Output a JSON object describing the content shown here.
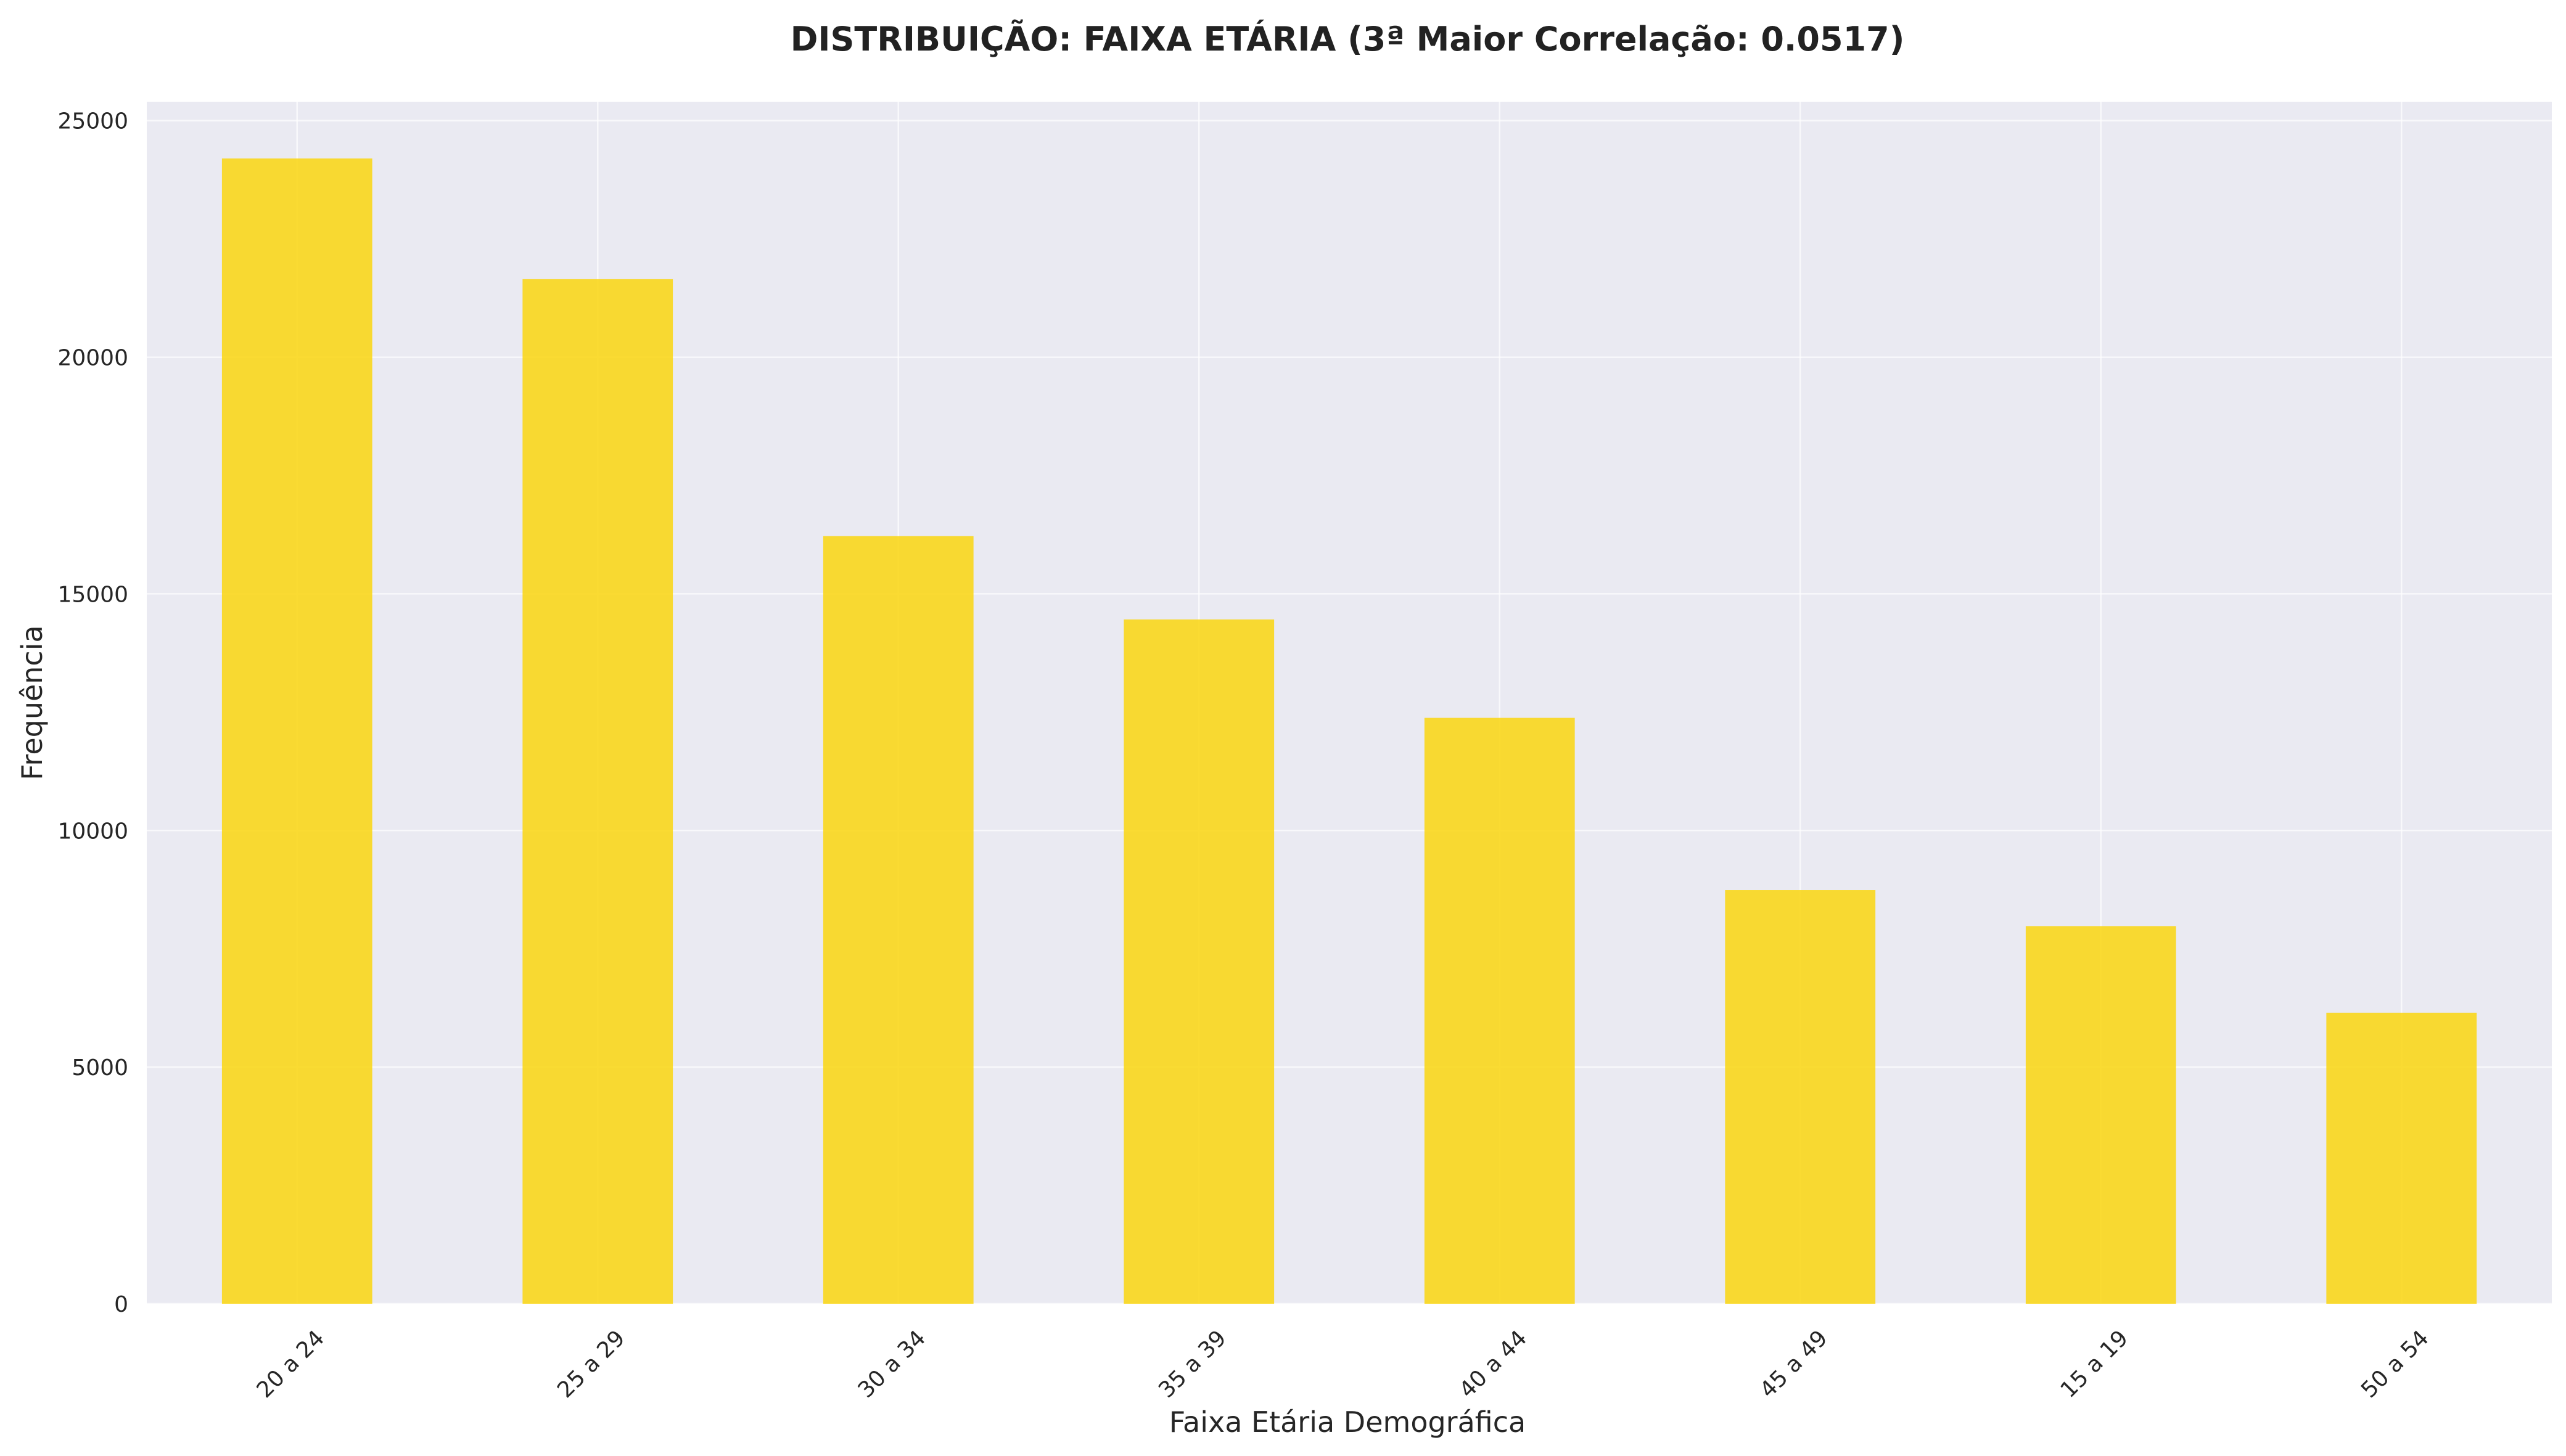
{
  "chart_data": {
    "type": "bar",
    "title": "DISTRIBUIÇÃO: FAIXA ETÁRIA (3ª Maior Correlação: 0.0517)",
    "xlabel": "Faixa Etária Demográfica",
    "ylabel": "Frequência",
    "categories": [
      "20 a 24",
      "25 a 29",
      "30 a 34",
      "35 a 39",
      "40 a 44",
      "45 a 49",
      "15 a 19",
      "50 a 54"
    ],
    "values": [
      24200,
      21650,
      16220,
      14460,
      12380,
      8740,
      7980,
      6150
    ],
    "ylim": [
      0,
      25400
    ],
    "yticks": [
      0,
      5000,
      10000,
      15000,
      20000,
      25000
    ],
    "grid": true,
    "bar_color": "#F9D71C",
    "plot_background": "#EAEAF2"
  }
}
